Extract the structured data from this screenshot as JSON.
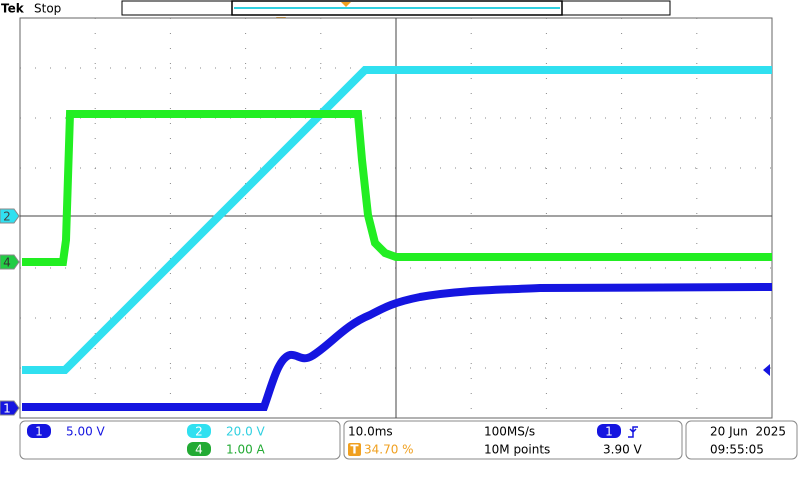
{
  "header": {
    "brand": "Tek",
    "status": "Stop"
  },
  "markers": {
    "trigger": "T",
    "ch2": "2",
    "ch4": "4",
    "ch1": "1"
  },
  "channels": [
    {
      "number": "1",
      "scale": "5.00 V"
    },
    {
      "number": "2",
      "scale": "20.0 V"
    },
    {
      "number": "4",
      "scale": "1.00 A"
    }
  ],
  "timebase": {
    "scale": "10.0ms",
    "trigger_icon": "T",
    "trigger_position": "34.70 %",
    "sample_rate": "100MS/s",
    "record_length": "10M points"
  },
  "trigger": {
    "source": "1",
    "level": "3.90 V"
  },
  "datetime": {
    "date": "20 Jun  2025",
    "time": "09:55:05"
  }
}
